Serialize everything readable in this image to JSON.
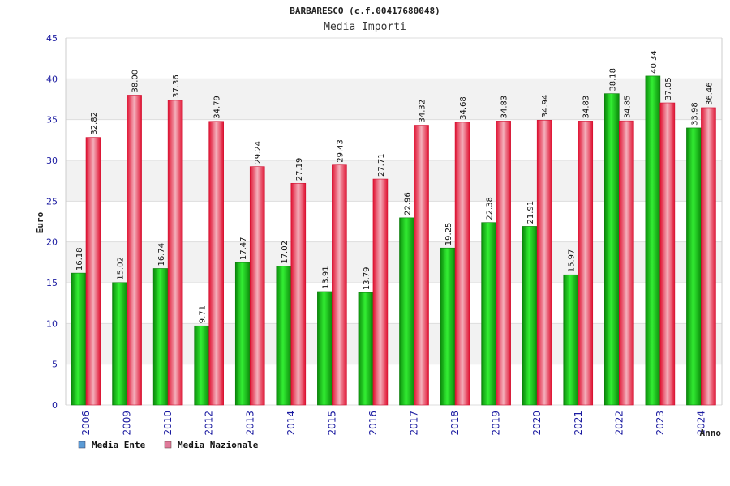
{
  "chart_data": {
    "type": "bar",
    "title": "BARBARESCO (c.f.00417680048)",
    "subtitle": "Media Importi",
    "xlabel": "Anno",
    "ylabel": "Euro",
    "ylim": [
      0,
      45
    ],
    "yticks": [
      0,
      5,
      10,
      15,
      20,
      25,
      30,
      35,
      40,
      45
    ],
    "grid": true,
    "legend_position": "bottom-left",
    "categories": [
      "2006",
      "2009",
      "2010",
      "2012",
      "2013",
      "2014",
      "2015",
      "2016",
      "2017",
      "2018",
      "2019",
      "2020",
      "2021",
      "2022",
      "2023",
      "2024"
    ],
    "series": [
      {
        "name": "Media Ente",
        "color": "#1fcf1f",
        "legend_color": "#5b9bd5",
        "values": [
          16.18,
          15.02,
          16.74,
          9.71,
          17.47,
          17.02,
          13.91,
          13.79,
          22.96,
          19.25,
          22.38,
          21.91,
          15.97,
          38.18,
          40.34,
          33.98
        ],
        "labels": [
          "16.18",
          "15.02",
          "16.74",
          "9.71",
          "17.47",
          "17.02",
          "13.91",
          "13.79",
          "22.96",
          "19.25",
          "22.38",
          "21.91",
          "15.97",
          "38.18",
          "40.34",
          "33.98"
        ]
      },
      {
        "name": "Media Nazionale",
        "color": "#e8203a",
        "legend_color": "#e07a9a",
        "values": [
          32.82,
          38.0,
          37.36,
          34.79,
          29.24,
          27.19,
          29.43,
          27.71,
          34.32,
          34.68,
          34.83,
          34.94,
          34.83,
          34.85,
          37.05,
          36.46
        ],
        "labels": [
          "32.82",
          "38.00",
          "37.36",
          "34.79",
          "29.24",
          "27.19",
          "29.43",
          "27.71",
          "34.32",
          "34.68",
          "34.83",
          "34.94",
          "34.83",
          "34.85",
          "37.05",
          "36.46"
        ]
      }
    ]
  }
}
